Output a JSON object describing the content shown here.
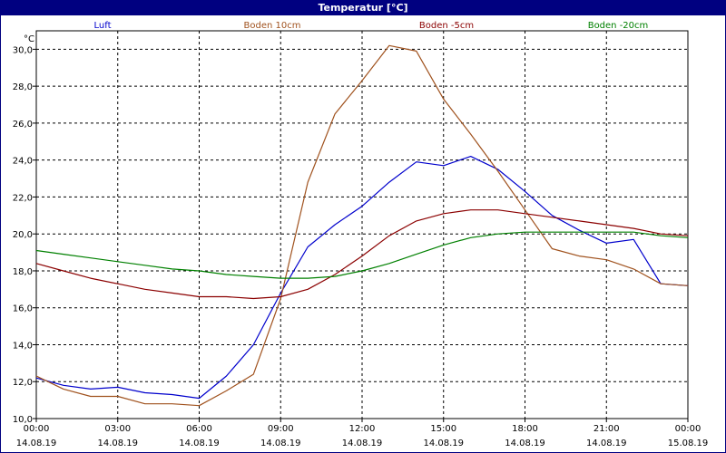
{
  "window": {
    "title": "Temperatur [°C]"
  },
  "colors": {
    "Luft": "#0000cc",
    "Boden 10cm": "#a0521e",
    "Boden -5cm": "#8b0000",
    "Boden -20cm": "#008000",
    "grid": "#000000",
    "titlebar": "#000080"
  },
  "chart_data": {
    "type": "line",
    "ylabel": "°C",
    "ylim": [
      10,
      31
    ],
    "yticks": [
      "10,0",
      "12,0",
      "14,0",
      "16,0",
      "18,0",
      "20,0",
      "22,0",
      "24,0",
      "26,0",
      "28,0",
      "30,0"
    ],
    "xlim": [
      0,
      24
    ],
    "xticks": [
      {
        "time": "00:00",
        "date": "14.08.19"
      },
      {
        "time": "03:00",
        "date": "14.08.19"
      },
      {
        "time": "06:00",
        "date": "14.08.19"
      },
      {
        "time": "09:00",
        "date": "14.08.19"
      },
      {
        "time": "12:00",
        "date": "14.08.19"
      },
      {
        "time": "15:00",
        "date": "14.08.19"
      },
      {
        "time": "18:00",
        "date": "14.08.19"
      },
      {
        "time": "21:00",
        "date": "14.08.19"
      },
      {
        "time": "00:00",
        "date": "15.08.19"
      }
    ],
    "grid": true,
    "legend_position": "top",
    "x": [
      0,
      1,
      2,
      3,
      4,
      5,
      6,
      7,
      8,
      9,
      10,
      11,
      12,
      13,
      14,
      15,
      16,
      17,
      18,
      19,
      20,
      21,
      22,
      23,
      24
    ],
    "series": [
      {
        "name": "Luft",
        "values": [
          12.2,
          11.8,
          11.6,
          11.7,
          11.4,
          11.3,
          11.1,
          12.3,
          14.0,
          16.8,
          19.3,
          20.5,
          21.5,
          22.8,
          23.9,
          23.7,
          24.2,
          23.5,
          22.3,
          21.0,
          20.2,
          19.5,
          19.7,
          17.3,
          17.2
        ]
      },
      {
        "name": "Boden 10cm",
        "values": [
          12.3,
          11.6,
          11.2,
          11.2,
          10.8,
          10.8,
          10.7,
          11.5,
          12.4,
          16.5,
          22.8,
          26.5,
          28.3,
          30.2,
          29.9,
          27.3,
          25.4,
          23.4,
          21.3,
          19.2,
          18.8,
          18.6,
          18.1,
          17.3,
          17.2
        ]
      },
      {
        "name": "Boden -5cm",
        "values": [
          18.4,
          18.0,
          17.6,
          17.3,
          17.0,
          16.8,
          16.6,
          16.6,
          16.5,
          16.6,
          17.0,
          17.8,
          18.8,
          19.9,
          20.7,
          21.1,
          21.3,
          21.3,
          21.1,
          20.9,
          20.7,
          20.5,
          20.3,
          20.0,
          19.9
        ]
      },
      {
        "name": "Boden -20cm",
        "values": [
          19.1,
          18.9,
          18.7,
          18.5,
          18.3,
          18.1,
          18.0,
          17.8,
          17.7,
          17.6,
          17.6,
          17.7,
          18.0,
          18.4,
          18.9,
          19.4,
          19.8,
          20.0,
          20.1,
          20.1,
          20.1,
          20.1,
          20.1,
          19.9,
          19.8
        ]
      }
    ]
  }
}
